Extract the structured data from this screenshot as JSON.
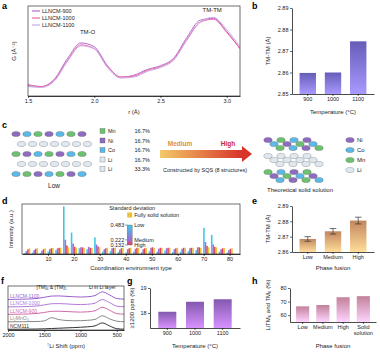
{
  "chart_data": [
    {
      "panel": "a",
      "type": "line",
      "x_label": "r (Å)",
      "y_label": "G (Å⁻²)",
      "x": [
        1.5,
        1.6,
        1.7,
        1.8,
        1.9,
        2.0,
        2.1,
        2.2,
        2.3,
        2.4,
        2.5,
        2.6,
        2.7,
        2.8,
        2.9,
        3.0,
        3.1
      ],
      "series": [
        {
          "name": "LLNCM-900",
          "color": "#b06ad0",
          "values": [
            0.22,
            0.2,
            0.28,
            0.5,
            0.66,
            0.62,
            0.42,
            0.3,
            0.32,
            0.38,
            0.42,
            0.5,
            0.72,
            0.9,
            0.92,
            0.78,
            0.6
          ]
        },
        {
          "name": "LLNCM-1000",
          "color": "#f06aa0",
          "values": [
            0.21,
            0.2,
            0.27,
            0.48,
            0.64,
            0.6,
            0.41,
            0.3,
            0.31,
            0.37,
            0.41,
            0.49,
            0.7,
            0.88,
            0.91,
            0.77,
            0.6
          ]
        },
        {
          "name": "LLNCM-1100",
          "color": "#c8a8e8",
          "values": [
            0.2,
            0.19,
            0.26,
            0.47,
            0.63,
            0.6,
            0.4,
            0.29,
            0.3,
            0.36,
            0.4,
            0.48,
            0.69,
            0.88,
            0.93,
            0.8,
            0.62
          ]
        }
      ],
      "xlim": [
        1.5,
        3.1
      ],
      "xticks": [
        1.5,
        {
          "value": 2,
          "label": "2.0"
        },
        2.5,
        {
          "value": 3,
          "label": "3.0"
        }
      ],
      "ylim": [
        0.1,
        1.05
      ],
      "tick_labels": "x",
      "legend": "upper left",
      "annotations": [
        {
          "text": "TM-O",
          "x": 1.95,
          "y": 0.75
        },
        {
          "text": "TM-TM",
          "x": 2.89,
          "y": 0.99
        }
      ]
    },
    {
      "panel": "b",
      "type": "bar",
      "x_label": "Temperature (°C)",
      "y_label": "TM-TM (Å)",
      "categories": [
        "900",
        "1000",
        "1100"
      ],
      "values": [
        2.8598,
        2.86,
        2.8745
      ],
      "color": "#7a6fdc",
      "ylim": [
        2.85,
        2.89
      ],
      "yticks": [
        2.85,
        2.86,
        2.87,
        2.88,
        2.89
      ]
    },
    {
      "panel": "d",
      "type": "bar",
      "x_label": "Coordination environment type",
      "y_label": "Intensity (a.u.)",
      "x": [
        2,
        5,
        8,
        11,
        14,
        17,
        20,
        23,
        26,
        29,
        32,
        35,
        38,
        41,
        44,
        47,
        50,
        53,
        56,
        59,
        62,
        65,
        68,
        71,
        74,
        77,
        80
      ],
      "series": [
        {
          "name": "Low",
          "color": "#3cc7e6",
          "values": [
            0.02,
            0.03,
            0.02,
            0.05,
            0.08,
            1.0,
            0.45,
            0.12,
            0.1,
            0.35,
            0.05,
            0.06,
            0.04,
            0.03,
            0.05,
            0.04,
            0.06,
            0.05,
            0.07,
            0.04,
            0.05,
            0.06,
            0.08,
            0.55,
            0.4,
            0.05,
            0.03
          ]
        },
        {
          "name": "Medium",
          "color": "#9a6fd6",
          "values": [
            0.06,
            0.08,
            0.07,
            0.1,
            0.12,
            0.3,
            0.22,
            0.14,
            0.15,
            0.2,
            0.1,
            0.12,
            0.09,
            0.1,
            0.11,
            0.1,
            0.13,
            0.11,
            0.12,
            0.1,
            0.11,
            0.12,
            0.14,
            0.25,
            0.2,
            0.1,
            0.08
          ]
        },
        {
          "name": "High",
          "color": "#e0405a",
          "values": [
            0.1,
            0.11,
            0.1,
            0.12,
            0.13,
            0.18,
            0.15,
            0.14,
            0.13,
            0.16,
            0.12,
            0.13,
            0.12,
            0.12,
            0.13,
            0.12,
            0.14,
            0.13,
            0.13,
            0.12,
            0.13,
            0.13,
            0.14,
            0.17,
            0.15,
            0.12,
            0.11
          ]
        },
        {
          "name": "Fully solid solution",
          "color": "#e8c23a",
          "values": [
            0.12,
            0.12,
            0.12,
            0.13,
            0.13,
            0.14,
            0.13,
            0.13,
            0.13,
            0.14,
            0.13,
            0.13,
            0.13,
            0.13,
            0.13,
            0.13,
            0.13,
            0.13,
            0.13,
            0.13,
            0.13,
            0.13,
            0.13,
            0.14,
            0.14,
            0.13,
            0.12
          ]
        }
      ],
      "xlim": [
        0,
        84
      ],
      "xticks": [
        10,
        20,
        30,
        40,
        50,
        60,
        70,
        80
      ],
      "ylim": [
        0,
        1.05
      ],
      "tick_labels": "x",
      "legend": "upper center",
      "colorbar": {
        "title": "Standard deviation",
        "ticks": [
          0.483,
          0.222,
          0.132
        ]
      }
    },
    {
      "panel": "e",
      "type": "bar",
      "x_label": "Phase fusion",
      "y_label": "TM-TM (Å)",
      "categories": [
        "Low",
        "Medium",
        "High"
      ],
      "values": [
        2.8685,
        2.8735,
        2.8805
      ],
      "errors": [
        0.0015,
        0.0018,
        0.0022
      ],
      "color": "#e8a070",
      "ylim": [
        2.86,
        2.89
      ],
      "yticks": [
        2.86,
        2.87,
        2.88,
        2.89
      ]
    },
    {
      "panel": "f",
      "type": "line",
      "x_label": "⁷Li Shift (ppm)",
      "x": [
        2000,
        1800,
        1600,
        1500,
        1400,
        1300,
        1200,
        1100,
        1000,
        900,
        800,
        700,
        600,
        500,
        400
      ],
      "series": [
        {
          "name": "LLNCM-1100",
          "color": "#9a5fc8",
          "values": [
            4,
            4.03,
            4.13,
            4.28,
            4.45,
            4.47,
            4.42,
            4.36,
            4.32,
            4.36,
            4.52,
            5.02,
            4.6,
            4.12,
            4.03
          ]
        },
        {
          "name": "LLNCM-1000",
          "color": "#b07ad8",
          "values": [
            3,
            3.03,
            3.12,
            3.26,
            3.42,
            3.44,
            3.4,
            3.34,
            3.31,
            3.35,
            3.5,
            3.98,
            3.58,
            3.1,
            3.02
          ]
        },
        {
          "name": "LLNCM-900",
          "color": "#d06aa8",
          "values": [
            2,
            2.03,
            2.12,
            2.25,
            2.4,
            2.42,
            2.38,
            2.33,
            2.3,
            2.34,
            2.48,
            2.95,
            2.55,
            2.1,
            2.02
          ]
        },
        {
          "name": "Li₂MnO₃",
          "color": "#888888",
          "values": [
            1,
            1.01,
            1.04,
            1.12,
            1.55,
            1.3,
            1.18,
            1.14,
            1.15,
            1.2,
            1.32,
            1.8,
            1.4,
            1.08,
            1.01
          ]
        },
        {
          "name": "NCM111",
          "color": "#333333",
          "values": [
            0,
            0.01,
            0.03,
            0.06,
            0.1,
            0.14,
            0.18,
            0.22,
            0.27,
            0.33,
            0.45,
            0.85,
            0.45,
            0.08,
            0.01
          ]
        }
      ],
      "xlim": [
        2000,
        400
      ],
      "xticks": [
        2000,
        1500,
        1000,
        500
      ],
      "ylim": [
        -0.1,
        5.8
      ],
      "tick_labels": "x",
      "legend": "inline",
      "annotations": [
        {
          "text": "[TM]₆ & [TM]₅",
          "x": 1400,
          "y": 5.45
        },
        {
          "text": "Li in Li layer",
          "x": 700,
          "y": 5.45
        }
      ]
    },
    {
      "panel": "g",
      "type": "bar",
      "x_label": "Temperature (°C)",
      "y_label": "≥1200 ppm (%)",
      "categories": [
        "900",
        "1000",
        "1100"
      ],
      "values": [
        18.05,
        18.45,
        18.55
      ],
      "color": "#9c6ad0",
      "ylim": [
        17.4,
        19
      ],
      "yticks": [
        18,
        19
      ]
    },
    {
      "panel": "h",
      "type": "bar",
      "x_label": "Phase fusion",
      "y_label": "LiTM₆ and TM₆ (%)",
      "categories": [
        "Low",
        "Medium",
        "High",
        "Solid solution"
      ],
      "values": [
        66.5,
        67.5,
        73.2,
        74
      ],
      "color": "#e89ab8",
      "ylim": [
        55,
        80
      ],
      "yticks": [
        60,
        70,
        80
      ]
    }
  ],
  "diagram": {
    "panel": "c",
    "lattice_label": "Low",
    "arrow_labels": [
      "Medium",
      "High"
    ],
    "arrow_caption": "Constructed by SQS (8 structures)",
    "result_label": "Theoretical solid solution",
    "composition": [
      {
        "element": "Mn",
        "share": "16.7%"
      },
      {
        "element": "Ni",
        "share": "16.7%"
      },
      {
        "element": "Co",
        "share": "16.7%"
      },
      {
        "element": "Li",
        "share": "16.7%"
      },
      {
        "element": "Li",
        "share": "33.3%"
      }
    ],
    "elements": [
      {
        "name": "Ni",
        "color": "#8e6bbf"
      },
      {
        "name": "Co",
        "color": "#5cb8e6"
      },
      {
        "name": "Mn",
        "color": "#6cc070"
      },
      {
        "name": "Li",
        "color": "#dfe8f0"
      }
    ]
  }
}
